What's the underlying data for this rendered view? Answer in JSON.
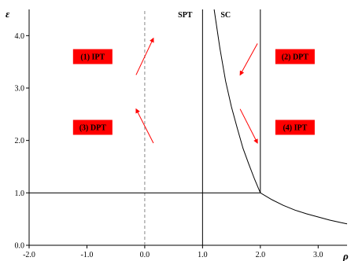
{
  "chart_data": {
    "type": "line",
    "xlabel": "ρ",
    "ylabel": "ε",
    "xlim": [
      -2.0,
      3.5
    ],
    "ylim": [
      0.0,
      4.5
    ],
    "x_ticks": [
      "-2.0",
      "-1.0",
      "0.0",
      "1.0",
      "2.0",
      "3.0"
    ],
    "y_ticks": [
      "0.0",
      "1.0",
      "2.0",
      "3.0",
      "4.0"
    ],
    "grid": false,
    "reference_lines": [
      {
        "orientation": "vertical",
        "x": 0.0,
        "style": "dashed"
      },
      {
        "orientation": "vertical",
        "x": 1.0,
        "style": "solid"
      },
      {
        "orientation": "vertical",
        "x": 2.0,
        "y_from": 1.0,
        "y_to": 4.5,
        "style": "solid"
      },
      {
        "orientation": "horizontal",
        "y": 1.0,
        "x_to": 2.0,
        "style": "solid"
      }
    ],
    "line_labels": [
      {
        "text": "SPT",
        "x": 0.7
      },
      {
        "text": "SC",
        "x": 1.4
      }
    ],
    "series": [
      {
        "type": "curve",
        "x": [
          1.2,
          1.3,
          1.4,
          1.5,
          1.6,
          1.7,
          1.8,
          1.9,
          2.0,
          2.2,
          2.4,
          2.6,
          2.8,
          3.0,
          3.2,
          3.4,
          3.5
        ],
        "y": [
          4.5,
          3.76,
          3.13,
          2.64,
          2.24,
          1.85,
          1.55,
          1.26,
          1.0,
          0.87,
          0.76,
          0.67,
          0.6,
          0.54,
          0.48,
          0.43,
          0.41
        ]
      }
    ],
    "annotations": [
      {
        "text": "(1) IPT",
        "box_center": [
          -0.9,
          3.6
        ],
        "arrow_from": [
          -0.15,
          3.25
        ],
        "arrow_to": [
          0.15,
          3.95
        ]
      },
      {
        "text": "(2) DPT",
        "box_center": [
          2.6,
          3.6
        ],
        "arrow_from": [
          1.95,
          3.85
        ],
        "arrow_to": [
          1.65,
          3.25
        ]
      },
      {
        "text": "(3) DPT",
        "box_center": [
          -0.9,
          2.25
        ],
        "arrow_from": [
          0.15,
          1.95
        ],
        "arrow_to": [
          -0.15,
          2.6
        ]
      },
      {
        "text": "(4) IPT",
        "box_center": [
          2.6,
          2.25
        ],
        "arrow_from": [
          1.65,
          2.6
        ],
        "arrow_to": [
          1.95,
          1.95
        ]
      }
    ],
    "colors": {
      "annotation_box": "#ff0000",
      "arrow": "#ff0000",
      "dashed_line": "#888888",
      "lines": "#000000"
    }
  }
}
